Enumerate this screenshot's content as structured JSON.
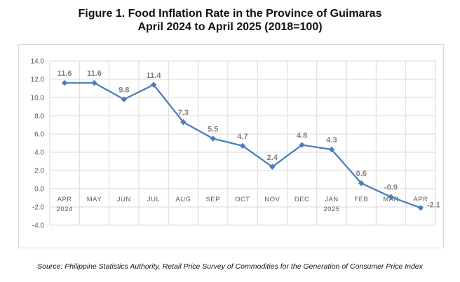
{
  "title_line1": "Figure 1. Food Inflation Rate in the Province of Guimaras",
  "title_line2": "April 2024 to April 2025 (2018=100)",
  "source": "Source: Philippine Statistics Authority, Retail Price Survey of Commodities for the Generation of Consumer Price Index",
  "colors": {
    "line": "#4a7ebb",
    "marker": "#4a7ebb",
    "labels": "#7f7f7f",
    "grid": "#d9d9d9",
    "axis_text": "#595959"
  },
  "chart_data": {
    "type": "line",
    "categories": [
      [
        "APR",
        "2024"
      ],
      [
        "MAY",
        ""
      ],
      [
        "JUN",
        ""
      ],
      [
        "JUL",
        ""
      ],
      [
        "AUG",
        ""
      ],
      [
        "SEP",
        ""
      ],
      [
        "OCT",
        ""
      ],
      [
        "NOV",
        ""
      ],
      [
        "DEC",
        ""
      ],
      [
        "JAN",
        "2025"
      ],
      [
        "FEB",
        ""
      ],
      [
        "MAR",
        ""
      ],
      [
        "APR",
        ""
      ]
    ],
    "values": [
      11.6,
      11.6,
      9.8,
      11.4,
      7.3,
      5.5,
      4.7,
      2.4,
      4.8,
      4.3,
      0.6,
      -0.9,
      -2.1
    ],
    "data_labels": [
      "11.6",
      "11.6",
      "9.8",
      "11.4",
      "7.3",
      "5.5",
      "4.7",
      "2.4",
      "4.8",
      "4.3",
      "0.6",
      "-0.9",
      "-2.1"
    ],
    "yticks": [
      "14.0",
      "12.0",
      "10.0",
      "8.0",
      "6.0",
      "4.0",
      "2.0",
      "0.0",
      "-2.0",
      "-4.0"
    ],
    "ylim": [
      -4,
      14
    ],
    "grid": true,
    "legend": "none"
  }
}
